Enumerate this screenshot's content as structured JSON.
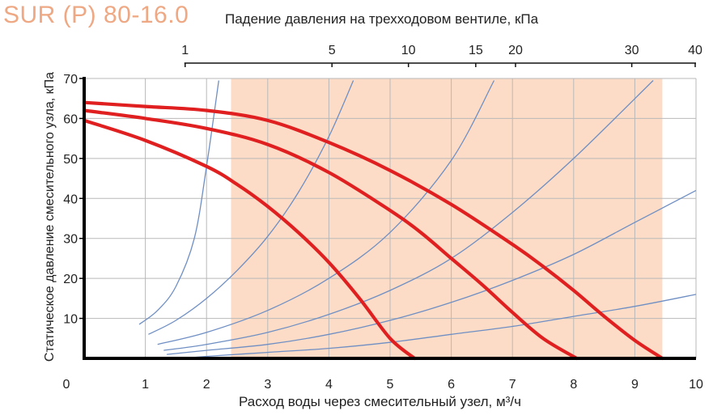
{
  "title": "SUR (P) 80-16.0",
  "chart_data": {
    "type": "line",
    "title": "SUR (P) 80-16.0",
    "xlabel": "Расход воды через смесительный узел, м³/ч",
    "ylabel": "Статическое давление смесительного узла, кПа",
    "top_axis_label": "Падение давления на трехходовом вентиле, кПа",
    "xlim": [
      0,
      10
    ],
    "ylim": [
      0,
      70
    ],
    "x_ticks": [
      "0",
      "1",
      "2",
      "3",
      "4",
      "5",
      "6",
      "7",
      "8",
      "9",
      "10"
    ],
    "y_ticks": [
      "10",
      "20",
      "30",
      "40",
      "50",
      "60",
      "70"
    ],
    "top_ticks": [
      {
        "label": "1",
        "flow": 1.65
      },
      {
        "label": "5",
        "flow": 4.05
      },
      {
        "label": "10",
        "flow": 5.3
      },
      {
        "label": "15",
        "flow": 6.4
      },
      {
        "label": "20",
        "flow": 7.05
      },
      {
        "label": "30",
        "flow": 8.95
      },
      {
        "label": "40",
        "flow": 10.0
      }
    ],
    "grid": true,
    "working_range": {
      "x": [
        2.4,
        9.45
      ],
      "color": "#fcdcc6"
    },
    "series": [
      {
        "color": "#e02020",
        "x": [
          0,
          1,
          2,
          2.5,
          3,
          3.5,
          4,
          4.5,
          5,
          5.4
        ],
        "y": [
          59.5,
          54.5,
          48,
          43.5,
          38,
          31.5,
          24,
          15,
          5,
          0
        ]
      },
      {
        "color": "#e02020",
        "x": [
          0,
          1,
          2,
          3,
          4,
          5,
          5.5,
          6,
          6.5,
          7,
          7.5,
          8.05
        ],
        "y": [
          62,
          60,
          57.5,
          53.5,
          46.5,
          37,
          31.5,
          25,
          18.5,
          11.5,
          5,
          0
        ]
      },
      {
        "color": "#e02020",
        "x": [
          0,
          1,
          2,
          3,
          4,
          5,
          6,
          7,
          7.5,
          8,
          8.5,
          9,
          9.45
        ],
        "y": [
          64,
          63,
          62,
          59.5,
          54,
          47,
          38.5,
          28.5,
          23,
          17,
          10.5,
          4.5,
          0
        ]
      }
    ],
    "system_curves": [
      {
        "color": "#6f8fc4",
        "x": [
          0.9,
          1.2,
          1.5,
          1.8,
          2.0,
          2.2
        ],
        "y": [
          8.5,
          12,
          18,
          30,
          48,
          69.5
        ]
      },
      {
        "color": "#6f8fc4",
        "x": [
          1.05,
          1.5,
          2,
          2.5,
          3,
          3.5,
          4,
          4.4
        ],
        "y": [
          6,
          9.5,
          15,
          22,
          30.5,
          41.5,
          55.5,
          69.5
        ]
      },
      {
        "color": "#6f8fc4",
        "x": [
          1.2,
          2,
          3,
          4,
          5,
          6,
          6.7
        ],
        "y": [
          3.5,
          6.5,
          12,
          20,
          31.5,
          49.5,
          69.5
        ]
      },
      {
        "color": "#6f8fc4",
        "x": [
          1.3,
          2,
          3,
          4,
          5,
          6,
          7,
          8,
          9.3
        ],
        "y": [
          2,
          3.5,
          6.5,
          11,
          17,
          25,
          36.5,
          50,
          69.5
        ]
      },
      {
        "color": "#6f8fc4",
        "x": [
          1.35,
          2,
          3,
          4,
          5,
          6,
          7,
          8,
          9,
          10
        ],
        "y": [
          1,
          2,
          3.5,
          6,
          9.5,
          14,
          19.5,
          26,
          34,
          42
        ]
      },
      {
        "color": "#6f8fc4",
        "x": [
          1.6,
          2,
          3,
          4,
          5,
          6,
          7,
          8,
          9,
          10
        ],
        "y": [
          0,
          0.5,
          1.5,
          2.5,
          4,
          6,
          8,
          10.5,
          13,
          16
        ]
      }
    ]
  }
}
